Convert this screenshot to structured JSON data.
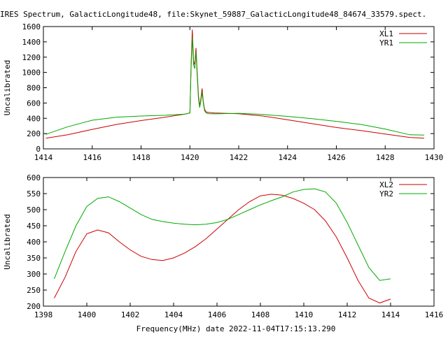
{
  "title": "IRES Spectrum, GalacticLongitude48, file:Skynet_59887_GalacticLongitude48_84674_33579.spect.",
  "xlabel": "Frequency(MHz) date 2022-11-04T17:15:13.290",
  "colors": {
    "red": "#cc0000",
    "green": "#00aa00"
  },
  "chart_data": [
    {
      "type": "line",
      "ylabel": "Uncalibrated",
      "xlim": [
        1414,
        1430
      ],
      "ylim": [
        0,
        1600
      ],
      "xticks": [
        1414,
        1416,
        1418,
        1420,
        1422,
        1424,
        1426,
        1428,
        1430
      ],
      "yticks": [
        0,
        200,
        400,
        600,
        800,
        1000,
        1200,
        1400,
        1600
      ],
      "grid": false,
      "legend_position": "top-right",
      "series": [
        {
          "name": "XL1",
          "color": "#cc0000",
          "x": [
            1414.1,
            1415,
            1416,
            1417,
            1418,
            1419,
            1419.8,
            1420.0,
            1420.05,
            1420.1,
            1420.15,
            1420.2,
            1420.25,
            1420.3,
            1420.35,
            1420.4,
            1420.45,
            1420.5,
            1420.55,
            1420.6,
            1420.65,
            1420.7,
            1420.8,
            1421,
            1422,
            1423,
            1424,
            1425,
            1426,
            1427,
            1428,
            1429,
            1429.6
          ],
          "y": [
            140,
            185,
            255,
            320,
            370,
            415,
            455,
            470,
            1100,
            1560,
            1150,
            1100,
            1320,
            1000,
            700,
            560,
            650,
            790,
            620,
            520,
            490,
            480,
            475,
            470,
            460,
            430,
            380,
            330,
            280,
            240,
            195,
            150,
            140
          ]
        },
        {
          "name": "YR1",
          "color": "#00aa00",
          "x": [
            1414.1,
            1415,
            1416,
            1417,
            1418,
            1419,
            1419.8,
            1420.0,
            1420.05,
            1420.1,
            1420.15,
            1420.2,
            1420.25,
            1420.3,
            1420.35,
            1420.4,
            1420.45,
            1420.5,
            1420.55,
            1420.6,
            1420.65,
            1420.7,
            1420.8,
            1421,
            1422,
            1423,
            1424,
            1425,
            1426,
            1427,
            1428,
            1429,
            1429.6
          ],
          "y": [
            190,
            290,
            375,
            415,
            430,
            440,
            455,
            470,
            1050,
            1460,
            1100,
            1050,
            1270,
            950,
            660,
            540,
            620,
            740,
            600,
            500,
            475,
            465,
            460,
            458,
            465,
            450,
            425,
            395,
            360,
            320,
            260,
            185,
            180
          ]
        }
      ]
    },
    {
      "type": "line",
      "ylabel": "Uncalibrated",
      "xlim": [
        1398,
        1416
      ],
      "ylim": [
        200,
        600
      ],
      "xticks": [
        1398,
        1400,
        1402,
        1404,
        1406,
        1408,
        1410,
        1412,
        1414,
        1416
      ],
      "yticks": [
        200,
        250,
        300,
        350,
        400,
        450,
        500,
        550,
        600
      ],
      "grid": false,
      "legend_position": "top-right",
      "series": [
        {
          "name": "XL2",
          "color": "#cc0000",
          "x": [
            1398.5,
            1399,
            1399.5,
            1400,
            1400.5,
            1401,
            1401.5,
            1402,
            1402.5,
            1403,
            1403.5,
            1404,
            1404.5,
            1405,
            1405.5,
            1406,
            1406.5,
            1407,
            1407.5,
            1408,
            1408.5,
            1409,
            1409.5,
            1410,
            1410.5,
            1411,
            1411.5,
            1412,
            1412.5,
            1413,
            1413.5,
            1414
          ],
          "y": [
            225,
            290,
            370,
            425,
            437,
            428,
            400,
            375,
            355,
            345,
            342,
            350,
            365,
            385,
            410,
            440,
            470,
            500,
            525,
            543,
            548,
            545,
            535,
            520,
            500,
            465,
            415,
            350,
            280,
            225,
            210,
            222
          ]
        },
        {
          "name": "YR2",
          "color": "#00aa00",
          "x": [
            1398.5,
            1399,
            1399.5,
            1400,
            1400.5,
            1401,
            1401.5,
            1402,
            1402.5,
            1403,
            1403.5,
            1404,
            1404.5,
            1405,
            1405.5,
            1406,
            1406.5,
            1407,
            1407.5,
            1408,
            1408.5,
            1409,
            1409.5,
            1410,
            1410.5,
            1411,
            1411.5,
            1412,
            1412.5,
            1413,
            1413.5,
            1414
          ],
          "y": [
            285,
            370,
            450,
            510,
            535,
            540,
            525,
            505,
            485,
            470,
            463,
            458,
            455,
            453,
            455,
            460,
            470,
            485,
            500,
            515,
            528,
            540,
            555,
            563,
            565,
            555,
            520,
            460,
            390,
            320,
            280,
            285
          ]
        }
      ]
    }
  ]
}
